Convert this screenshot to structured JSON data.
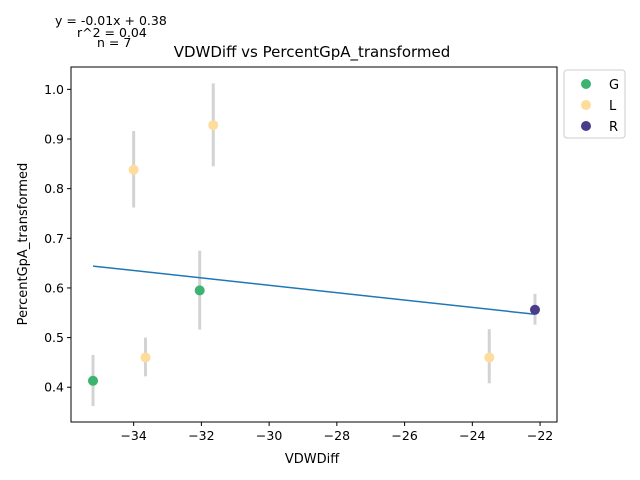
{
  "chart_data": {
    "type": "scatter",
    "title": "VDWDiff vs PercentGpA_transformed",
    "xlabel": "VDWDiff",
    "ylabel": "PercentGpA_transformed",
    "xlim": [
      -35.85,
      -21.5
    ],
    "ylim": [
      0.33,
      1.045
    ],
    "xticks": [
      -34,
      -32,
      -30,
      -28,
      -26,
      -24,
      -22
    ],
    "xtick_labels": [
      "−34",
      "−32",
      "−30",
      "−28",
      "−26",
      "−24",
      "−22"
    ],
    "yticks": [
      0.4,
      0.5,
      0.6,
      0.7,
      0.8,
      0.9,
      1.0
    ],
    "ytick_labels": [
      "0.4",
      "0.5",
      "0.6",
      "0.7",
      "0.8",
      "0.9",
      "1.0"
    ],
    "grid": false,
    "legend_position": "outside right, top",
    "annotations": [
      "y = -0.01x + 0.38",
      "r^2 = 0.04",
      "n = 7"
    ],
    "series": [
      {
        "name": "G",
        "color": "#3cb371",
        "points": [
          [
            -35.2,
            0.413
          ],
          [
            -32.05,
            0.595
          ]
        ]
      },
      {
        "name": "L",
        "color": "#fedc9b",
        "points": [
          [
            -34.0,
            0.838
          ],
          [
            -31.65,
            0.928
          ],
          [
            -33.65,
            0.46
          ],
          [
            -23.5,
            0.46
          ]
        ]
      },
      {
        "name": "R",
        "color": "#483d8b",
        "points": [
          [
            -22.15,
            0.556
          ]
        ]
      }
    ],
    "error_bars": [
      {
        "x": -35.2,
        "low": 0.362,
        "high": 0.465
      },
      {
        "x": -34.0,
        "low": 0.762,
        "high": 0.916
      },
      {
        "x": -33.65,
        "low": 0.422,
        "high": 0.5
      },
      {
        "x": -32.05,
        "low": 0.516,
        "high": 0.675
      },
      {
        "x": -31.65,
        "low": 0.845,
        "high": 1.012
      },
      {
        "x": -23.5,
        "low": 0.408,
        "high": 0.517
      },
      {
        "x": -22.15,
        "low": 0.526,
        "high": 0.588
      }
    ],
    "fit_line": {
      "color": "#1f77b4",
      "x": [
        -35.2,
        -22.15
      ],
      "y": [
        0.644,
        0.547
      ]
    },
    "error_bar_color": "#d3d3d3"
  }
}
